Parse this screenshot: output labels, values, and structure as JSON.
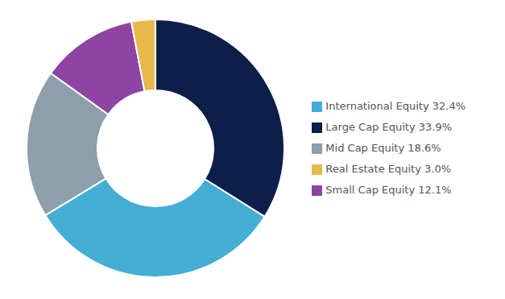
{
  "chart_data": {
    "type": "donut",
    "categories": [
      "Large Cap Equity 33.9%",
      "International Equity 32.4%",
      "Mid Cap Equity 18.6%",
      "Small Cap Equity 12.1%",
      "Real Estate Equity 3.0%"
    ],
    "values": [
      33.9,
      32.4,
      18.6,
      12.1,
      3.0
    ],
    "colors": [
      "#0d1f49",
      "#44aed4",
      "#8c9faa",
      "#8e44a3",
      "#e8b84b"
    ],
    "legend": "right"
  }
}
